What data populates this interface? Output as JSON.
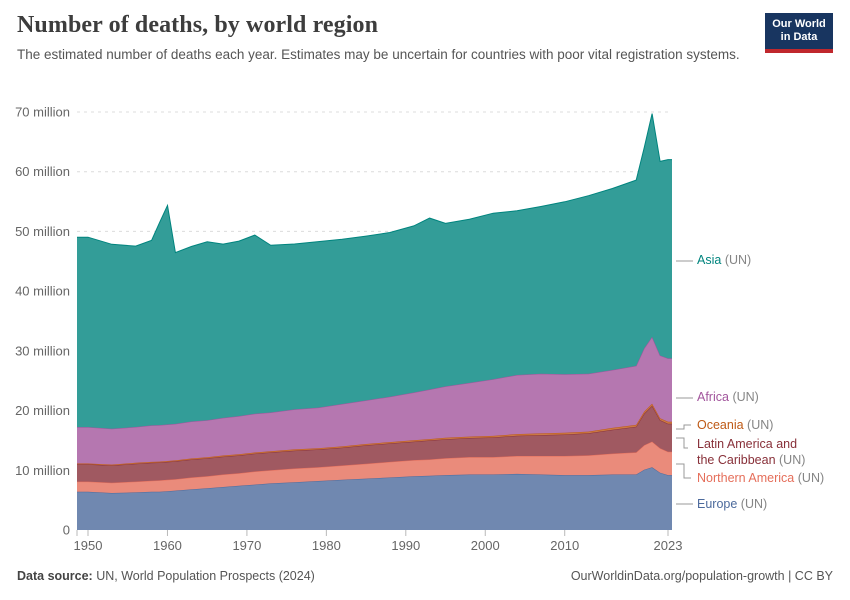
{
  "header": {
    "title": "Number of deaths, by world region",
    "subtitle": "The estimated number of deaths each year. Estimates may be uncertain for countries with poor vital registration systems.",
    "logo": {
      "line1": "Our World",
      "line2": "in Data"
    }
  },
  "footer": {
    "source_label": "Data source:",
    "source_value": " UN, World Population Prospects (2024)",
    "link_text": "OurWorldinData.org/population-growth | CC BY"
  },
  "chart_data": {
    "type": "area",
    "stacked": true,
    "title": "Number of deaths, by world region",
    "xlabel": "",
    "ylabel": "",
    "ylim": [
      0,
      70
    ],
    "y_unit": "million deaths per year",
    "grid": "dashed-horizontal",
    "legend_position": "right",
    "x_ticks": [
      1950,
      1960,
      1970,
      1980,
      1990,
      2000,
      2010,
      2023
    ],
    "y_ticks": [
      {
        "value": 0,
        "label": "0"
      },
      {
        "value": 10,
        "label": "10 million"
      },
      {
        "value": 20,
        "label": "20 million"
      },
      {
        "value": 30,
        "label": "30 million"
      },
      {
        "value": 40,
        "label": "40 million"
      },
      {
        "value": 50,
        "label": "50 million"
      },
      {
        "value": 60,
        "label": "60 million"
      },
      {
        "value": 70,
        "label": "70 million"
      }
    ],
    "x": [
      1950,
      1953,
      1956,
      1958,
      1959,
      1960,
      1961,
      1963,
      1965,
      1967,
      1969,
      1971,
      1973,
      1976,
      1979,
      1982,
      1985,
      1988,
      1991,
      1993,
      1995,
      1998,
      2001,
      2004,
      2007,
      2010,
      2013,
      2016,
      2019,
      2020,
      2021,
      2022,
      2023
    ],
    "stack_order": "bottom_to_top",
    "values_unit": "millions",
    "series": [
      {
        "name": "Europe",
        "label": "Europe",
        "suffix": "(UN)",
        "color": "#4C6A9C",
        "values": [
          6.4,
          6.2,
          6.3,
          6.4,
          6.4,
          6.5,
          6.6,
          6.8,
          7.0,
          7.2,
          7.4,
          7.6,
          7.8,
          8.0,
          8.2,
          8.4,
          8.6,
          8.8,
          9.0,
          9.1,
          9.2,
          9.3,
          9.3,
          9.4,
          9.3,
          9.2,
          9.2,
          9.3,
          9.3,
          10.1,
          10.5,
          9.6,
          9.2
        ]
      },
      {
        "name": "Northern America",
        "label": "Northern America",
        "suffix": "(UN)",
        "color": "#E56E5A",
        "values": [
          1.7,
          1.7,
          1.8,
          1.85,
          1.9,
          1.9,
          1.9,
          2.0,
          2.0,
          2.1,
          2.1,
          2.2,
          2.2,
          2.3,
          2.3,
          2.4,
          2.5,
          2.6,
          2.7,
          2.7,
          2.8,
          2.9,
          2.9,
          3.0,
          3.1,
          3.2,
          3.3,
          3.5,
          3.7,
          4.1,
          4.3,
          4.1,
          3.9
        ]
      },
      {
        "name": "Latin America and the Caribbean",
        "label": "Latin America and the Caribbean",
        "suffix": "(UN)",
        "color": "#883039",
        "values": [
          2.9,
          2.9,
          3.0,
          3.0,
          3.0,
          3.0,
          3.0,
          3.0,
          3.0,
          3.0,
          3.0,
          3.0,
          3.0,
          3.0,
          3.0,
          3.0,
          3.1,
          3.1,
          3.1,
          3.2,
          3.2,
          3.2,
          3.3,
          3.4,
          3.5,
          3.6,
          3.7,
          4.0,
          4.3,
          5.3,
          6.0,
          4.7,
          4.7
        ]
      },
      {
        "name": "Oceania",
        "label": "Oceania",
        "suffix": "(UN)",
        "color": "#BE5915",
        "values": [
          0.14,
          0.15,
          0.15,
          0.16,
          0.16,
          0.16,
          0.16,
          0.17,
          0.17,
          0.17,
          0.18,
          0.18,
          0.18,
          0.19,
          0.19,
          0.2,
          0.21,
          0.22,
          0.22,
          0.23,
          0.24,
          0.24,
          0.25,
          0.26,
          0.27,
          0.27,
          0.28,
          0.29,
          0.3,
          0.32,
          0.33,
          0.33,
          0.33
        ]
      },
      {
        "name": "Africa",
        "label": "Africa",
        "suffix": "(UN)",
        "color": "#A2559C",
        "values": [
          6.1,
          6.0,
          6.0,
          6.1,
          6.1,
          6.1,
          6.1,
          6.2,
          6.2,
          6.3,
          6.4,
          6.5,
          6.5,
          6.7,
          6.8,
          7.1,
          7.3,
          7.6,
          8.0,
          8.3,
          8.6,
          9.0,
          9.5,
          9.9,
          10.0,
          9.8,
          9.7,
          9.7,
          9.9,
          10.6,
          11.2,
          10.5,
          10.6
        ]
      },
      {
        "name": "Asia",
        "label": "Asia",
        "suffix": "(UN)",
        "color": "#00847E",
        "values": [
          31.8,
          30.9,
          30.3,
          31.0,
          33.9,
          36.7,
          28.7,
          29.3,
          29.9,
          29.1,
          29.3,
          29.9,
          28.0,
          27.7,
          27.8,
          27.6,
          27.5,
          27.5,
          27.9,
          28.7,
          27.3,
          27.4,
          27.8,
          27.5,
          28.0,
          28.9,
          29.8,
          30.4,
          31.1,
          33.6,
          37.4,
          32.5,
          33.3
        ]
      }
    ],
    "annotations": {
      "peak_1960_total": 54.4,
      "peak_2021_total": 69.7,
      "end_2023_total": 62.0
    }
  },
  "legend_display_order": [
    "Asia",
    "Africa",
    "Oceania",
    "Latin America and the Caribbean",
    "Northern America",
    "Europe"
  ]
}
